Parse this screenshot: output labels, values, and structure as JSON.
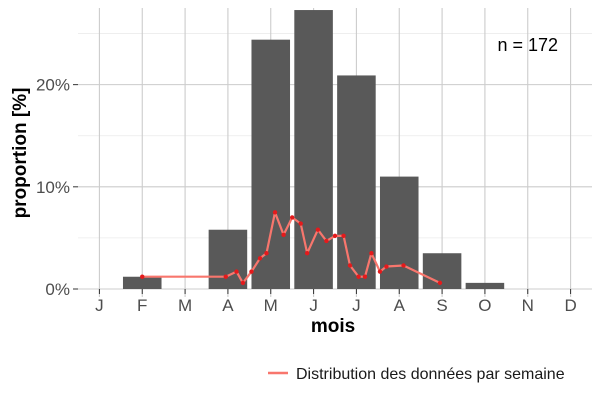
{
  "chart_data": {
    "type": "bar",
    "xlabel": "mois",
    "ylabel": "proportion [%]",
    "annotation": "n = 172",
    "categories": [
      "J",
      "F",
      "M",
      "A",
      "M",
      "J",
      "J",
      "A",
      "S",
      "O",
      "N",
      "D"
    ],
    "ylim": [
      0,
      27.5
    ],
    "yticks": [
      0,
      10,
      20
    ],
    "ytick_labels": [
      "0%",
      "10%",
      "20%"
    ],
    "grid": true,
    "bars": {
      "color": "#595959",
      "values": [
        0,
        1.2,
        0,
        5.8,
        24.4,
        27.3,
        20.9,
        11.0,
        3.5,
        0.6,
        0,
        0
      ]
    },
    "series": [
      {
        "name": "Distribution des données par semaine",
        "color": "#f8766d",
        "x": [
          2.0,
          3.95,
          4.2,
          4.35,
          4.55,
          4.75,
          4.9,
          5.1,
          5.3,
          5.5,
          5.7,
          5.85,
          6.1,
          6.3,
          6.5,
          6.7,
          6.85,
          7.05,
          7.2,
          7.35,
          7.55,
          7.7,
          8.1,
          8.95
        ],
        "values": [
          1.2,
          1.2,
          1.7,
          0.6,
          1.7,
          3.0,
          3.5,
          7.5,
          5.3,
          7.0,
          6.4,
          3.5,
          5.8,
          4.7,
          5.2,
          5.2,
          2.3,
          1.2,
          1.2,
          3.5,
          1.7,
          2.2,
          2.3,
          0.6
        ]
      }
    ],
    "legend_position": "bottom-right"
  }
}
